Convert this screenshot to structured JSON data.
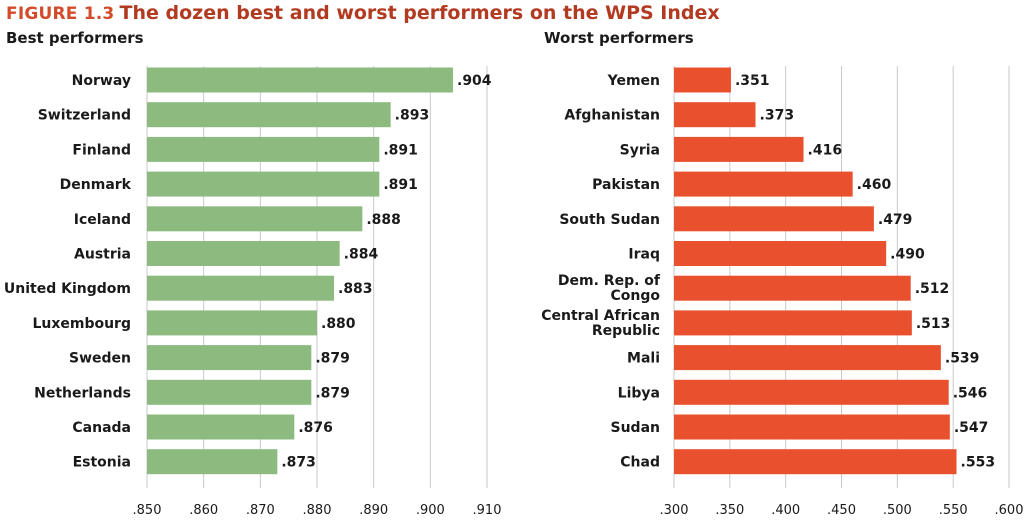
{
  "figure": {
    "label": "FIGURE 1.3",
    "title": "The dozen best and worst performers on the WPS Index"
  },
  "chart_data": [
    {
      "type": "bar",
      "orientation": "horizontal",
      "title": "Best performers",
      "categories": [
        "Norway",
        "Switzerland",
        "Finland",
        "Denmark",
        "Iceland",
        "Austria",
        "United Kingdom",
        "Luxembourg",
        "Sweden",
        "Netherlands",
        "Canada",
        "Estonia"
      ],
      "values": [
        0.904,
        0.893,
        0.891,
        0.891,
        0.888,
        0.884,
        0.883,
        0.88,
        0.879,
        0.879,
        0.876,
        0.873
      ],
      "value_labels": [
        ".904",
        ".893",
        ".891",
        ".891",
        ".888",
        ".884",
        ".883",
        ".880",
        ".879",
        ".879",
        ".876",
        ".873"
      ],
      "xlim": [
        0.85,
        0.91
      ],
      "xticks": [
        0.85,
        0.86,
        0.87,
        0.88,
        0.89,
        0.9,
        0.91
      ],
      "xtick_labels": [
        ".850",
        ".860",
        ".870",
        ".880",
        ".890",
        ".900",
        ".910"
      ],
      "grid": true,
      "color": "#8cba7f"
    },
    {
      "type": "bar",
      "orientation": "horizontal",
      "title": "Worst performers",
      "categories": [
        "Yemen",
        "Afghanistan",
        "Syria",
        "Pakistan",
        "South Sudan",
        "Iraq",
        "Dem. Rep. of\nCongo",
        "Central African\nRepublic",
        "Mali",
        "Libya",
        "Sudan",
        "Chad"
      ],
      "values": [
        0.351,
        0.373,
        0.416,
        0.46,
        0.479,
        0.49,
        0.512,
        0.513,
        0.539,
        0.546,
        0.547,
        0.553
      ],
      "value_labels": [
        ".351",
        ".373",
        ".416",
        ".460",
        ".479",
        ".490",
        ".512",
        ".513",
        ".539",
        ".546",
        ".547",
        ".553"
      ],
      "xlim": [
        0.3,
        0.6
      ],
      "xticks": [
        0.3,
        0.35,
        0.4,
        0.45,
        0.5,
        0.55,
        0.6
      ],
      "xtick_labels": [
        ".300",
        ".350",
        ".400",
        ".450",
        ".500",
        ".550",
        ".600"
      ],
      "grid": true,
      "color": "#e8502e"
    }
  ]
}
